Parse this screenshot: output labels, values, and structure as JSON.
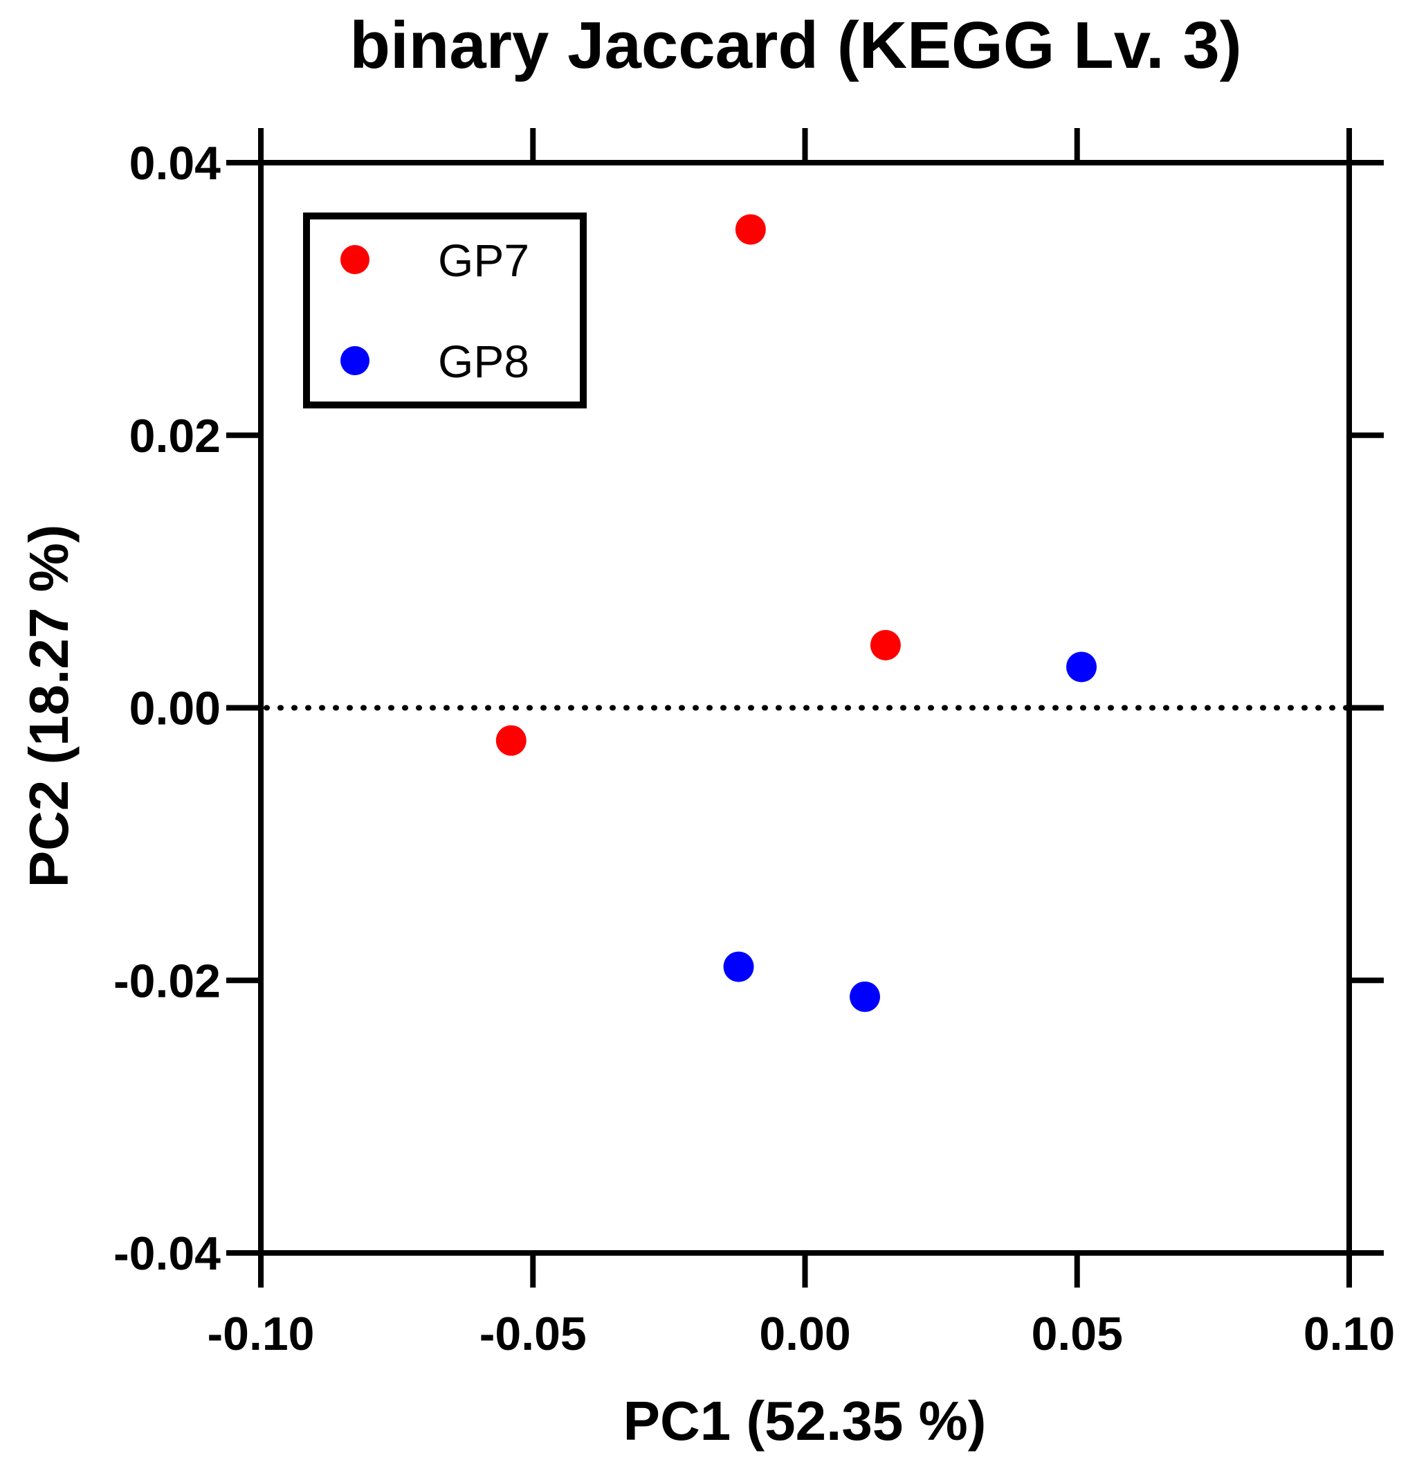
{
  "chart_data": {
    "type": "scatter",
    "title": "binary Jaccard (KEGG Lv. 3)",
    "xlabel": "PC1 (52.35 %)",
    "ylabel": "PC2 (18.27 %)",
    "xlim": [
      -0.1,
      0.1
    ],
    "ylim": [
      -0.04,
      0.04
    ],
    "xticks": [
      -0.1,
      -0.05,
      0.0,
      0.05,
      0.1
    ],
    "xtick_labels": [
      "-0.10",
      "-0.05",
      "0.00",
      "0.05",
      "0.10"
    ],
    "yticks": [
      -0.04,
      -0.02,
      0.0,
      0.02,
      0.04
    ],
    "ytick_labels": [
      "-0.04",
      "-0.02",
      "0.00",
      "0.02",
      "0.04"
    ],
    "reference_line": {
      "y": 0,
      "style": "dotted"
    },
    "legend_position": "top-left",
    "series": [
      {
        "name": "GP7",
        "color": "#ff0000",
        "points": [
          [
            -0.054,
            -0.0024
          ],
          [
            -0.01,
            0.0351
          ],
          [
            0.0148,
            0.0046
          ]
        ]
      },
      {
        "name": "GP8",
        "color": "#0000ff",
        "points": [
          [
            -0.0122,
            -0.019
          ],
          [
            0.011,
            -0.0212
          ],
          [
            0.0508,
            0.003
          ]
        ]
      }
    ]
  }
}
